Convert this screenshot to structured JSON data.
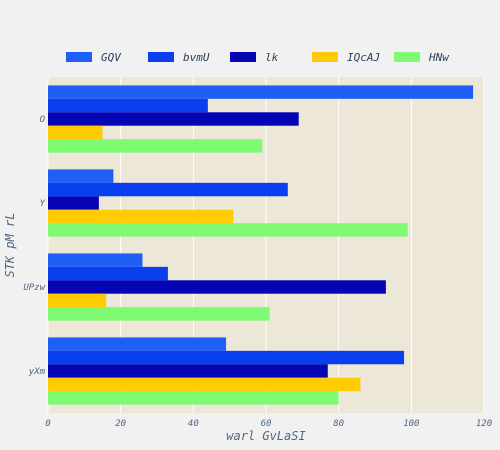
{
  "chart_data": {
    "type": "bar",
    "orientation": "horizontal",
    "categories": [
      "O",
      "Y",
      "UPzw",
      "yXm"
    ],
    "series": [
      {
        "name": "GQV",
        "color": "#1f5ff5",
        "values": [
          117,
          18,
          26,
          49
        ]
      },
      {
        "name": "bvmU",
        "color": "#0a3ff0",
        "values": [
          44,
          66,
          33,
          98
        ]
      },
      {
        "name": "lk",
        "color": "#0505b5",
        "values": [
          69,
          14,
          93,
          77
        ]
      },
      {
        "name": "IQcAJ",
        "color": "#ffcb05",
        "values": [
          15,
          51,
          16,
          86
        ]
      },
      {
        "name": "HNw",
        "color": "#7efb72",
        "values": [
          59,
          99,
          61,
          80
        ]
      }
    ],
    "xlabel": "warl GvLaSI",
    "ylabel": "STK pM rL",
    "xlim": [
      0,
      120
    ],
    "xticks": [
      0,
      20,
      40,
      60,
      80,
      100,
      120
    ],
    "grid": true,
    "legend_position": "top",
    "plot_background": "#ede7d8",
    "grid_color": "#ffffff"
  }
}
